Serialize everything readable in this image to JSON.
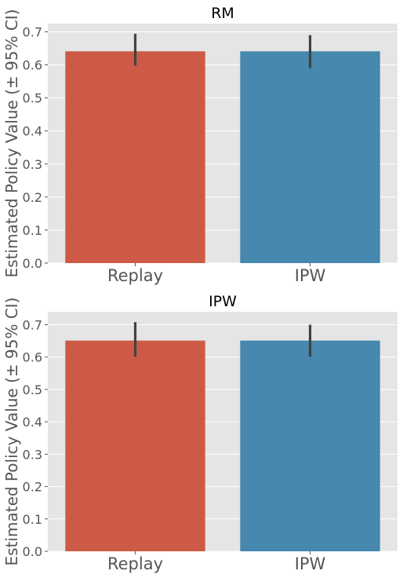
{
  "chart_data": [
    {
      "type": "bar",
      "title": "RM",
      "ylabel": "Estimated Policy Value (± 95% CI)",
      "xlabel": "",
      "categories": [
        "Replay",
        "IPW"
      ],
      "values": [
        0.641,
        0.641
      ],
      "ci": [
        [
          0.598,
          0.694
        ],
        [
          0.59,
          0.69
        ]
      ],
      "colors": [
        "#cd5a46",
        "#4688ae"
      ],
      "ylim": [
        0,
        0.725
      ],
      "yticks": [
        "0.0",
        "0.1",
        "0.2",
        "0.3",
        "0.4",
        "0.5",
        "0.6",
        "0.7"
      ],
      "grid": true
    },
    {
      "type": "bar",
      "title": "IPW",
      "ylabel": "Estimated Policy Value (± 95% CI)",
      "xlabel": "",
      "categories": [
        "Replay",
        "IPW"
      ],
      "values": [
        0.651,
        0.651
      ],
      "ci": [
        [
          0.601,
          0.708
        ],
        [
          0.601,
          0.7
        ]
      ],
      "colors": [
        "#cd5a46",
        "#4688ae"
      ],
      "ylim": [
        0,
        0.74
      ],
      "yticks": [
        "0.0",
        "0.1",
        "0.2",
        "0.3",
        "0.4",
        "0.5",
        "0.6",
        "0.7"
      ],
      "grid": true
    }
  ]
}
